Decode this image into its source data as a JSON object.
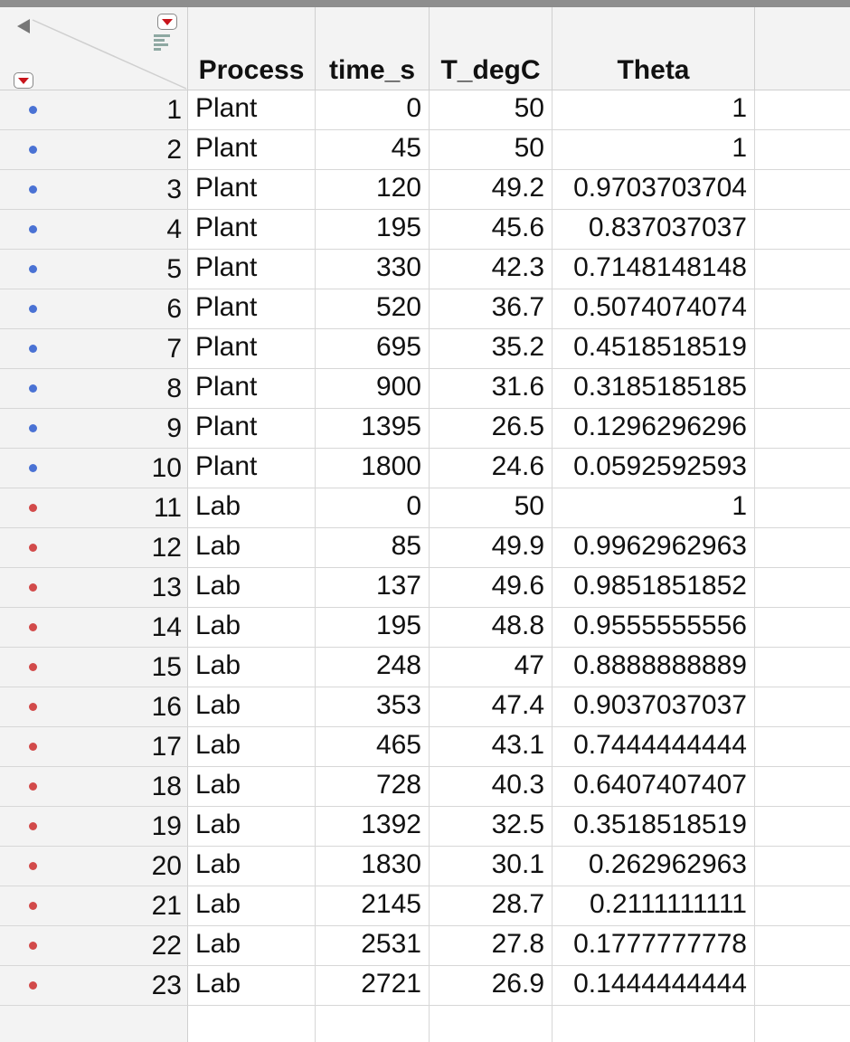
{
  "columns": [
    "Process",
    "time_s",
    "T_degC",
    "Theta"
  ],
  "colors": {
    "plant_marker": "#4a72d4",
    "lab_marker": "#d24a4a",
    "header_bg": "#f3f3f3"
  },
  "corner": {
    "icons": [
      "collapse-left-icon",
      "column-menu-icon",
      "rows-menu-icon",
      "column-list-icon"
    ]
  },
  "rows": [
    {
      "n": "1",
      "process": "Plant",
      "time": "0",
      "temp": "50",
      "theta": "1",
      "group": "plant"
    },
    {
      "n": "2",
      "process": "Plant",
      "time": "45",
      "temp": "50",
      "theta": "1",
      "group": "plant"
    },
    {
      "n": "3",
      "process": "Plant",
      "time": "120",
      "temp": "49.2",
      "theta": "0.9703703704",
      "group": "plant"
    },
    {
      "n": "4",
      "process": "Plant",
      "time": "195",
      "temp": "45.6",
      "theta": "0.837037037",
      "group": "plant"
    },
    {
      "n": "5",
      "process": "Plant",
      "time": "330",
      "temp": "42.3",
      "theta": "0.7148148148",
      "group": "plant"
    },
    {
      "n": "6",
      "process": "Plant",
      "time": "520",
      "temp": "36.7",
      "theta": "0.5074074074",
      "group": "plant"
    },
    {
      "n": "7",
      "process": "Plant",
      "time": "695",
      "temp": "35.2",
      "theta": "0.4518518519",
      "group": "plant"
    },
    {
      "n": "8",
      "process": "Plant",
      "time": "900",
      "temp": "31.6",
      "theta": "0.3185185185",
      "group": "plant"
    },
    {
      "n": "9",
      "process": "Plant",
      "time": "1395",
      "temp": "26.5",
      "theta": "0.1296296296",
      "group": "plant"
    },
    {
      "n": "10",
      "process": "Plant",
      "time": "1800",
      "temp": "24.6",
      "theta": "0.0592592593",
      "group": "plant"
    },
    {
      "n": "11",
      "process": "Lab",
      "time": "0",
      "temp": "50",
      "theta": "1",
      "group": "lab"
    },
    {
      "n": "12",
      "process": "Lab",
      "time": "85",
      "temp": "49.9",
      "theta": "0.9962962963",
      "group": "lab"
    },
    {
      "n": "13",
      "process": "Lab",
      "time": "137",
      "temp": "49.6",
      "theta": "0.9851851852",
      "group": "lab"
    },
    {
      "n": "14",
      "process": "Lab",
      "time": "195",
      "temp": "48.8",
      "theta": "0.9555555556",
      "group": "lab"
    },
    {
      "n": "15",
      "process": "Lab",
      "time": "248",
      "temp": "47",
      "theta": "0.8888888889",
      "group": "lab"
    },
    {
      "n": "16",
      "process": "Lab",
      "time": "353",
      "temp": "47.4",
      "theta": "0.9037037037",
      "group": "lab"
    },
    {
      "n": "17",
      "process": "Lab",
      "time": "465",
      "temp": "43.1",
      "theta": "0.7444444444",
      "group": "lab"
    },
    {
      "n": "18",
      "process": "Lab",
      "time": "728",
      "temp": "40.3",
      "theta": "0.6407407407",
      "group": "lab"
    },
    {
      "n": "19",
      "process": "Lab",
      "time": "1392",
      "temp": "32.5",
      "theta": "0.3518518519",
      "group": "lab"
    },
    {
      "n": "20",
      "process": "Lab",
      "time": "1830",
      "temp": "30.1",
      "theta": "0.262962963",
      "group": "lab"
    },
    {
      "n": "21",
      "process": "Lab",
      "time": "2145",
      "temp": "28.7",
      "theta": "0.2111111111",
      "group": "lab"
    },
    {
      "n": "22",
      "process": "Lab",
      "time": "2531",
      "temp": "27.8",
      "theta": "0.1777777778",
      "group": "lab"
    },
    {
      "n": "23",
      "process": "Lab",
      "time": "2721",
      "temp": "26.9",
      "theta": "0.1444444444",
      "group": "lab"
    }
  ]
}
